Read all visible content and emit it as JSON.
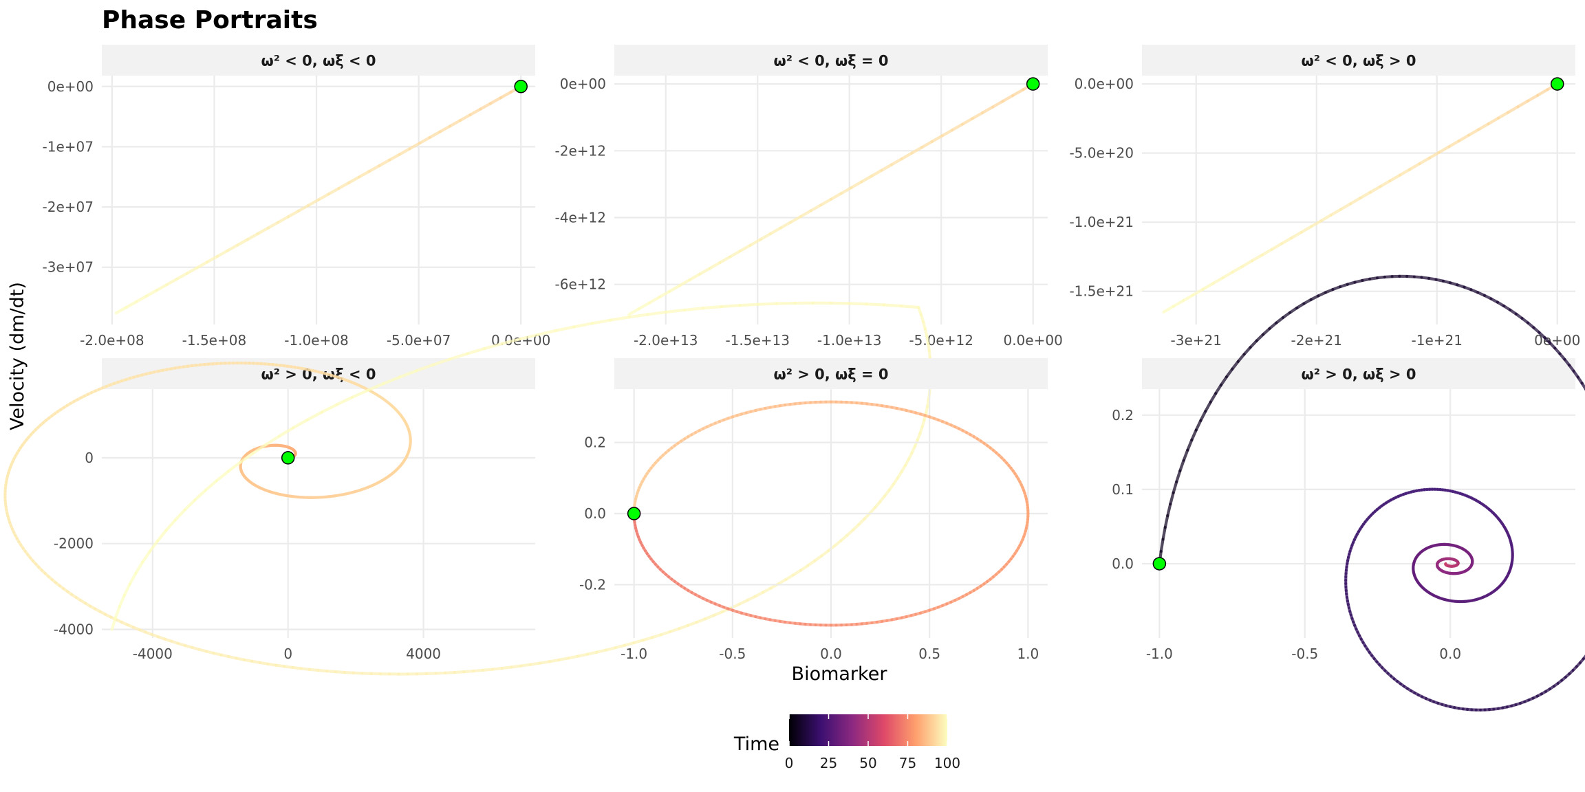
{
  "chart_data": {
    "type": "line",
    "title": "Phase Portraits",
    "xlabel": "Biomarker",
    "ylabel": "Velocity (dm/dt)",
    "grid": true,
    "legend": {
      "title": "Time",
      "placement": "bottom",
      "range": [
        0,
        100
      ],
      "ticks": [
        {
          "value": 0,
          "label": "0"
        },
        {
          "value": 25,
          "label": "25"
        },
        {
          "value": 50,
          "label": "50"
        },
        {
          "value": 75,
          "label": "75"
        },
        {
          "value": 100,
          "label": "100"
        }
      ],
      "colors": [
        "#000004",
        "#3b0f70",
        "#8c2981",
        "#de4968",
        "#fe9f6d",
        "#fcfdbf"
      ]
    },
    "start_point_color": "#00ff00",
    "panels": [
      {
        "label": "ω² < 0, ωξ < 0",
        "kind": "line",
        "xlim": [
          -205000000,
          7000000
        ],
        "ylim": [
          -39500000,
          1800000
        ],
        "start": [
          0,
          0
        ],
        "end": [
          -198000000,
          -37600000
        ],
        "t0": 91,
        "t1": 100,
        "xticks": [
          {
            "value": -200000000,
            "label": "-2.0e+08"
          },
          {
            "value": -150000000,
            "label": "-1.5e+08"
          },
          {
            "value": -100000000,
            "label": "-1.0e+08"
          },
          {
            "value": -50000000,
            "label": "-5.0e+07"
          },
          {
            "value": 0,
            "label": "0.0e+00"
          }
        ],
        "yticks": [
          {
            "value": -30000000,
            "label": "-3e+07"
          },
          {
            "value": -20000000,
            "label": "-2e+07"
          },
          {
            "value": -10000000,
            "label": "-1e+07"
          },
          {
            "value": 0,
            "label": "0e+00"
          }
        ]
      },
      {
        "label": "ω² < 0, ωξ = 0",
        "kind": "line",
        "xlim": [
          -22800000000000,
          800000000000
        ],
        "ylim": [
          -7200000000000,
          250000000000
        ],
        "start": [
          0,
          0
        ],
        "end": [
          -22000000000000,
          -6900000000000
        ],
        "t0": 91,
        "t1": 100,
        "xticks": [
          {
            "value": -20000000000000,
            "label": "-2.0e+13"
          },
          {
            "value": -15000000000000,
            "label": "-1.5e+13"
          },
          {
            "value": -10000000000000,
            "label": "-1.0e+13"
          },
          {
            "value": -5000000000000,
            "label": "-5.0e+12"
          },
          {
            "value": 0,
            "label": "0.0e+00"
          }
        ],
        "yticks": [
          {
            "value": -6000000000000,
            "label": "-6e+12"
          },
          {
            "value": -4000000000000,
            "label": "-4e+12"
          },
          {
            "value": -2000000000000,
            "label": "-2e+12"
          },
          {
            "value": 0,
            "label": "0e+00"
          }
        ]
      },
      {
        "label": "ω² < 0, ωξ > 0",
        "kind": "line",
        "xlim": [
          -3450000000000000000000,
          150000000000000000000
        ],
        "ylim": [
          -1740000000000000000000,
          60000000000000000000
        ],
        "start": [
          0,
          0
        ],
        "end": [
          -3270000000000000000000,
          -1650000000000000000000
        ],
        "t0": 91,
        "t1": 100,
        "xticks": [
          {
            "value": -3000000000000000000000,
            "label": "-3e+21"
          },
          {
            "value": -2000000000000000000000,
            "label": "-2e+21"
          },
          {
            "value": -1000000000000000000000,
            "label": "-1e+21"
          },
          {
            "value": 0,
            "label": "0e+00"
          }
        ],
        "yticks": [
          {
            "value": -1500000000000000000000,
            "label": "-1.5e+21"
          },
          {
            "value": -1000000000000000000000,
            "label": "-1.0e+21"
          },
          {
            "value": -500000000000000000000,
            "label": "-5.0e+20"
          },
          {
            "value": 0,
            "label": "0.0e+00"
          }
        ]
      },
      {
        "label": "ω² > 0, ωξ < 0",
        "kind": "spiral_out",
        "xlim": [
          -5500,
          7300
        ],
        "ylim": [
          -4200,
          1600
        ],
        "start": [
          0,
          0
        ],
        "end": [
          -5200,
          -4000
        ],
        "t0": 78,
        "t1": 100,
        "xticks": [
          {
            "value": -4000,
            "label": "-4000"
          },
          {
            "value": 0,
            "label": "0"
          },
          {
            "value": 4000,
            "label": "4000"
          }
        ],
        "yticks": [
          {
            "value": -4000,
            "label": "-4000"
          },
          {
            "value": -2000,
            "label": "-2000"
          },
          {
            "value": 0,
            "label": "0"
          }
        ]
      },
      {
        "label": "ω² > 0, ωξ = 0",
        "kind": "ellipse",
        "xlim": [
          -1.1,
          1.1
        ],
        "ylim": [
          -0.35,
          0.35
        ],
        "start": [
          -1.0,
          0.0
        ],
        "amp_x": 1.0,
        "amp_y": 0.314,
        "t0": 70,
        "t1": 90,
        "xticks": [
          {
            "value": -1.0,
            "label": "-1.0"
          },
          {
            "value": -0.5,
            "label": "-0.5"
          },
          {
            "value": 0.0,
            "label": "0.0"
          },
          {
            "value": 0.5,
            "label": "0.5"
          },
          {
            "value": 1.0,
            "label": "1.0"
          }
        ],
        "yticks": [
          {
            "value": -0.2,
            "label": "-0.2"
          },
          {
            "value": 0.0,
            "label": "0.0"
          },
          {
            "value": 0.2,
            "label": "0.2"
          }
        ]
      },
      {
        "label": "ω² > 0, ωξ > 0",
        "kind": "spiral_in",
        "xlim": [
          -1.06,
          0.43
        ],
        "ylim": [
          -0.1,
          0.235
        ],
        "start": [
          -1.0,
          0.0
        ],
        "t0": 5,
        "t1": 55,
        "xticks": [
          {
            "value": -1.0,
            "label": "-1.0"
          },
          {
            "value": -0.5,
            "label": "-0.5"
          },
          {
            "value": 0.0,
            "label": "0.0"
          }
        ],
        "yticks": [
          {
            "value": 0.0,
            "label": "0.0"
          },
          {
            "value": 0.1,
            "label": "0.1"
          },
          {
            "value": 0.2,
            "label": "0.2"
          }
        ]
      }
    ]
  }
}
